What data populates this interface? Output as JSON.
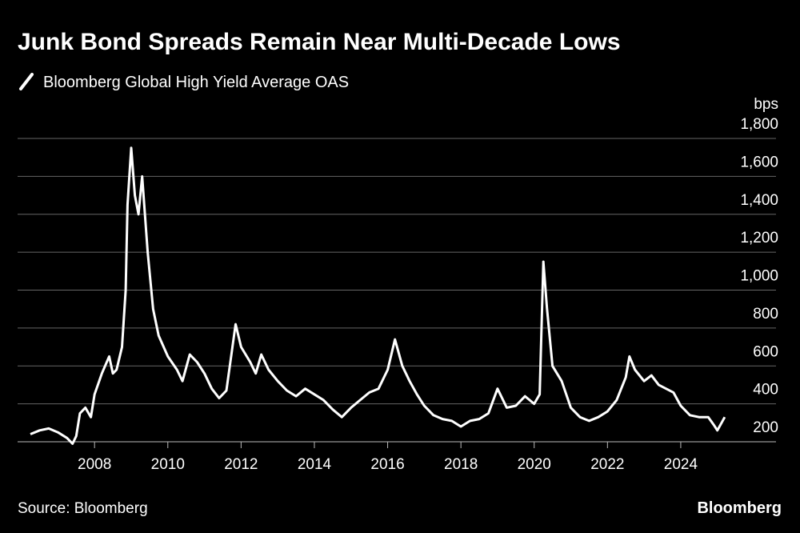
{
  "chart_data": {
    "type": "line",
    "title": "Junk Bond Spreads Remain Near Multi-Decade Lows",
    "y_label": "bps",
    "source": "Source: Bloomberg",
    "brand": "Bloomberg",
    "series": [
      {
        "name": "Bloomberg Global High Yield Average OAS",
        "color": "#ffffff",
        "x": [
          2006.25,
          2006.5,
          2006.75,
          2007.0,
          2007.25,
          2007.4,
          2007.5,
          2007.6,
          2007.75,
          2007.9,
          2008.0,
          2008.2,
          2008.4,
          2008.5,
          2008.6,
          2008.75,
          2008.85,
          2008.9,
          2009.0,
          2009.1,
          2009.2,
          2009.3,
          2009.45,
          2009.6,
          2009.75,
          2010.0,
          2010.25,
          2010.4,
          2010.6,
          2010.8,
          2011.0,
          2011.2,
          2011.4,
          2011.6,
          2011.75,
          2011.85,
          2012.0,
          2012.25,
          2012.4,
          2012.55,
          2012.75,
          2013.0,
          2013.25,
          2013.5,
          2013.75,
          2014.0,
          2014.25,
          2014.5,
          2014.75,
          2015.0,
          2015.25,
          2015.5,
          2015.75,
          2016.0,
          2016.2,
          2016.4,
          2016.6,
          2016.8,
          2017.0,
          2017.25,
          2017.5,
          2017.75,
          2018.0,
          2018.25,
          2018.5,
          2018.75,
          2019.0,
          2019.25,
          2019.5,
          2019.75,
          2020.0,
          2020.15,
          2020.25,
          2020.35,
          2020.5,
          2020.75,
          2021.0,
          2021.25,
          2021.5,
          2021.75,
          2022.0,
          2022.25,
          2022.5,
          2022.6,
          2022.75,
          2023.0,
          2023.2,
          2023.4,
          2023.6,
          2023.8,
          2024.0,
          2024.25,
          2024.5,
          2024.75,
          2024.9,
          2025.0,
          2025.2
        ],
        "values": [
          240,
          260,
          270,
          250,
          220,
          190,
          230,
          350,
          380,
          330,
          450,
          560,
          650,
          560,
          580,
          700,
          1000,
          1450,
          1750,
          1500,
          1400,
          1600,
          1200,
          900,
          760,
          650,
          580,
          520,
          660,
          620,
          560,
          480,
          430,
          470,
          680,
          820,
          700,
          620,
          560,
          660,
          580,
          520,
          470,
          440,
          480,
          450,
          420,
          370,
          330,
          380,
          420,
          460,
          480,
          580,
          740,
          600,
          520,
          450,
          390,
          340,
          320,
          310,
          280,
          310,
          320,
          350,
          480,
          380,
          390,
          440,
          400,
          450,
          1150,
          900,
          600,
          520,
          380,
          330,
          310,
          330,
          360,
          420,
          540,
          650,
          580,
          520,
          550,
          500,
          480,
          460,
          390,
          340,
          330,
          330,
          290,
          260,
          330
        ]
      }
    ],
    "xlim": [
      2005.9,
      2026.6
    ],
    "xticks": [
      2008,
      2010,
      2012,
      2014,
      2016,
      2018,
      2020,
      2022,
      2024
    ],
    "ylim": [
      200,
      1800
    ],
    "yticks": [
      200,
      400,
      600,
      800,
      {
        "value": 1000,
        "label": "1,000"
      },
      {
        "value": 1200,
        "label": "1,200"
      },
      {
        "value": 1400,
        "label": "1,400"
      },
      {
        "value": 1600,
        "label": "1,600"
      },
      {
        "value": 1800,
        "label": "1,800"
      }
    ],
    "grid": true
  }
}
